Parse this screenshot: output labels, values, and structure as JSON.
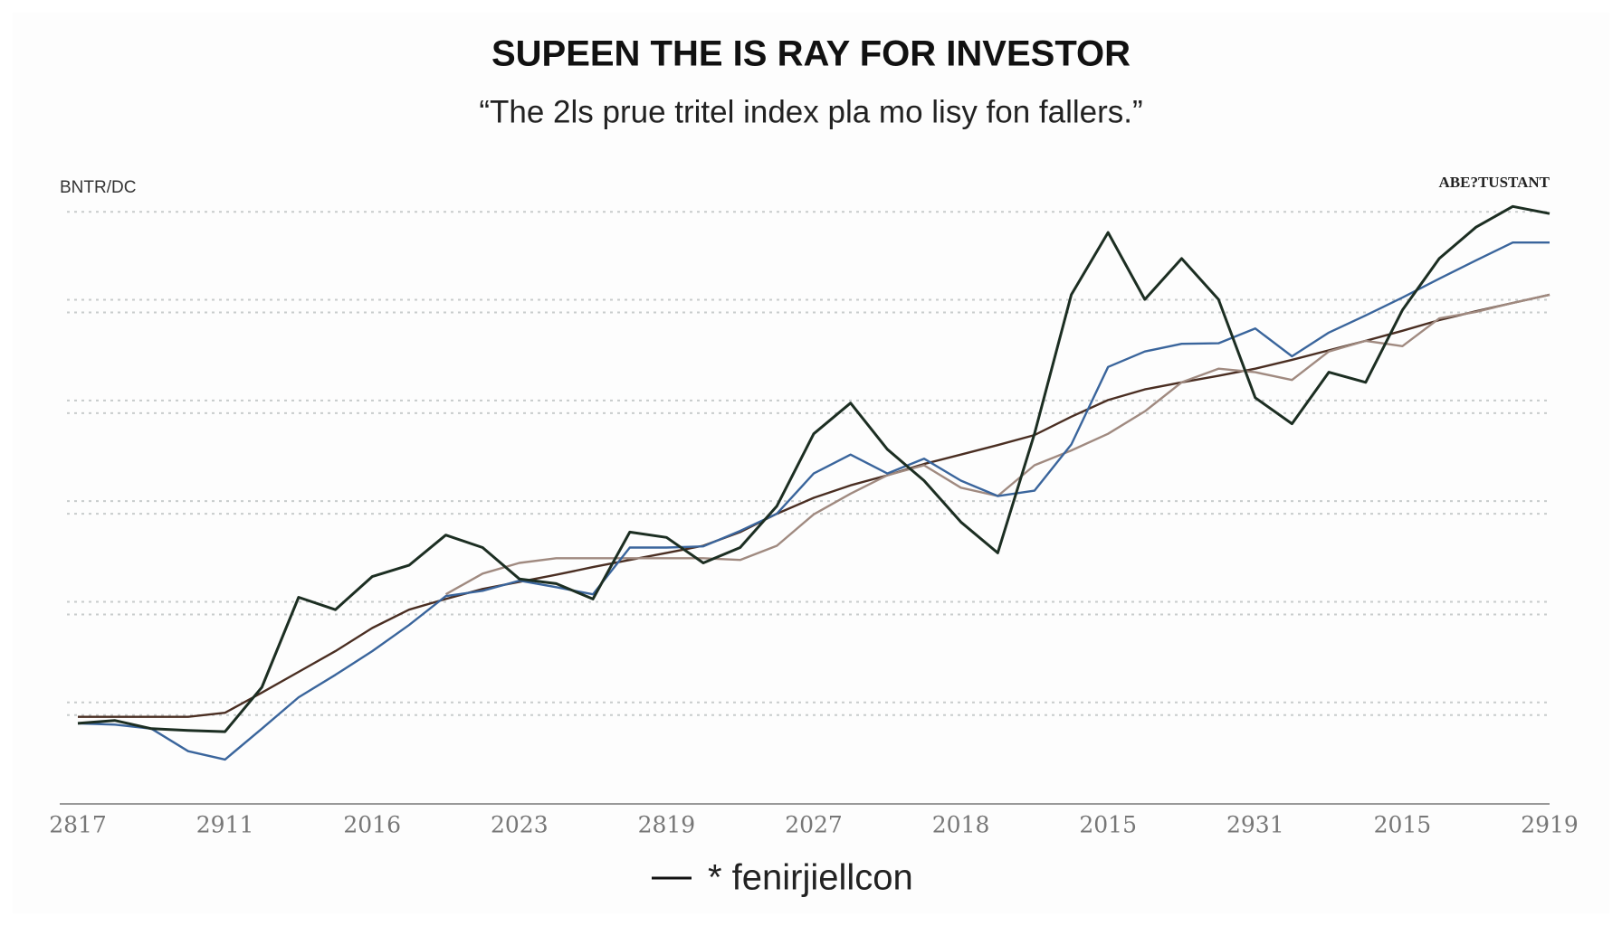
{
  "chart_data": {
    "type": "line",
    "title": "SUPEEN THE IS RAY FOR INVESTOR",
    "subtitle": "“The 2ls prue tritel index pla mo lisy fon fallers.”",
    "left_label": "BNTR/DC",
    "right_label": "ABE?TUSTANT",
    "xlim": [
      0,
      40
    ],
    "xticks": [
      {
        "value": 0,
        "label": "2817"
      },
      {
        "value": 4,
        "label": "2911"
      },
      {
        "value": 8,
        "label": "2016"
      },
      {
        "value": 12,
        "label": "2023"
      },
      {
        "value": 16,
        "label": "2819"
      },
      {
        "value": 20,
        "label": "2027"
      },
      {
        "value": 24,
        "label": "2018"
      },
      {
        "value": 28,
        "label": "2015"
      },
      {
        "value": 32,
        "label": "2931"
      },
      {
        "value": 36,
        "label": "2015"
      },
      {
        "value": 40,
        "label": "2919"
      }
    ],
    "ylim": [
      0,
      104
    ],
    "yticks": [
      15,
      32,
      49,
      66,
      83,
      100
    ],
    "grid": true,
    "x": [
      0,
      1,
      2,
      3,
      4,
      5,
      6,
      7,
      8,
      9,
      10,
      11,
      12,
      13,
      14,
      15,
      16,
      17,
      18,
      19,
      20,
      21,
      22,
      23,
      24,
      25,
      26,
      27,
      28,
      29,
      30,
      31,
      32,
      33,
      34,
      35,
      36,
      37,
      38,
      39,
      40
    ],
    "series": [
      {
        "name": "* fenirjiellcon",
        "color": "#1c2e22",
        "values": [
          13.6,
          14.1,
          12.7,
          12.4,
          12.2,
          19.7,
          34.9,
          32.8,
          38.4,
          40.3,
          45.4,
          43.3,
          38.0,
          37.2,
          34.6,
          45.9,
          45.0,
          40.7,
          43.3,
          50.3,
          62.5,
          67.7,
          59.9,
          54.6,
          47.6,
          42.4,
          62.5,
          86.0,
          96.5,
          85.2,
          92.1,
          85.2,
          68.6,
          64.2,
          72.9,
          71.2,
          83.4,
          92.1,
          97.4,
          100.9,
          99.7
        ]
      },
      {
        "color": "#3a659c",
        "values": [
          13.6,
          13.4,
          12.7,
          8.9,
          7.5,
          12.7,
          18.0,
          21.8,
          25.8,
          30.2,
          35.1,
          36.0,
          37.7,
          36.6,
          35.4,
          43.3,
          43.3,
          43.5,
          46.1,
          49.0,
          55.8,
          59.0,
          55.8,
          58.3,
          54.6,
          52.0,
          52.9,
          60.7,
          73.8,
          76.4,
          77.7,
          77.8,
          80.3,
          75.6,
          79.6,
          82.5,
          85.5,
          88.7,
          91.8,
          94.8,
          94.8
        ]
      },
      {
        "color": "#a08a80",
        "values": [
          null,
          null,
          null,
          null,
          null,
          null,
          null,
          null,
          null,
          null,
          35.4,
          38.9,
          40.7,
          41.5,
          41.5,
          41.5,
          41.5,
          41.5,
          41.2,
          43.6,
          48.9,
          52.4,
          55.5,
          57.2,
          53.4,
          52.0,
          57.2,
          59.7,
          62.5,
          66.3,
          71.2,
          73.5,
          72.9,
          71.6,
          76.4,
          78.2,
          77.3,
          82.0,
          83.1,
          84.6,
          86.0
        ]
      },
      {
        "color": "#4a2e22",
        "values": [
          14.7,
          14.7,
          14.7,
          14.7,
          15.4,
          18.8,
          22.3,
          25.8,
          29.7,
          32.8,
          34.6,
          36.3,
          37.5,
          38.7,
          40.0,
          41.2,
          42.4,
          43.6,
          45.9,
          49.0,
          51.7,
          53.8,
          55.5,
          57.4,
          59.0,
          60.6,
          62.3,
          65.4,
          68.2,
          70.0,
          71.2,
          72.3,
          73.5,
          75.0,
          76.6,
          78.2,
          79.9,
          81.7,
          83.2,
          84.6,
          86.0
        ]
      }
    ]
  }
}
